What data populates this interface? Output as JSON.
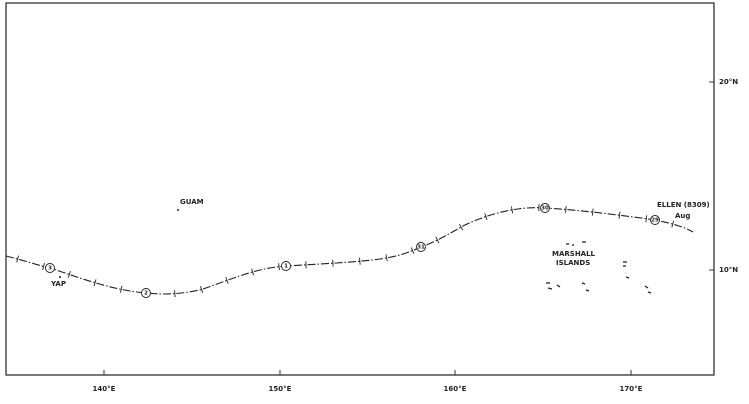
{
  "labels": {
    "guam": "GUAM",
    "yap": "YAP",
    "marshall": [
      "MARSHALL",
      "ISLANDS"
    ]
  },
  "storm": {
    "name": "ELLEN (8309)",
    "month": "Aug",
    "dates": [
      "3",
      "2",
      "1",
      "31",
      "30",
      "29"
    ]
  },
  "axes": {
    "longitude": [
      "140°E",
      "150°E",
      "160°E",
      "170°E"
    ],
    "latitude": [
      "20°N",
      "10°N"
    ]
  }
}
